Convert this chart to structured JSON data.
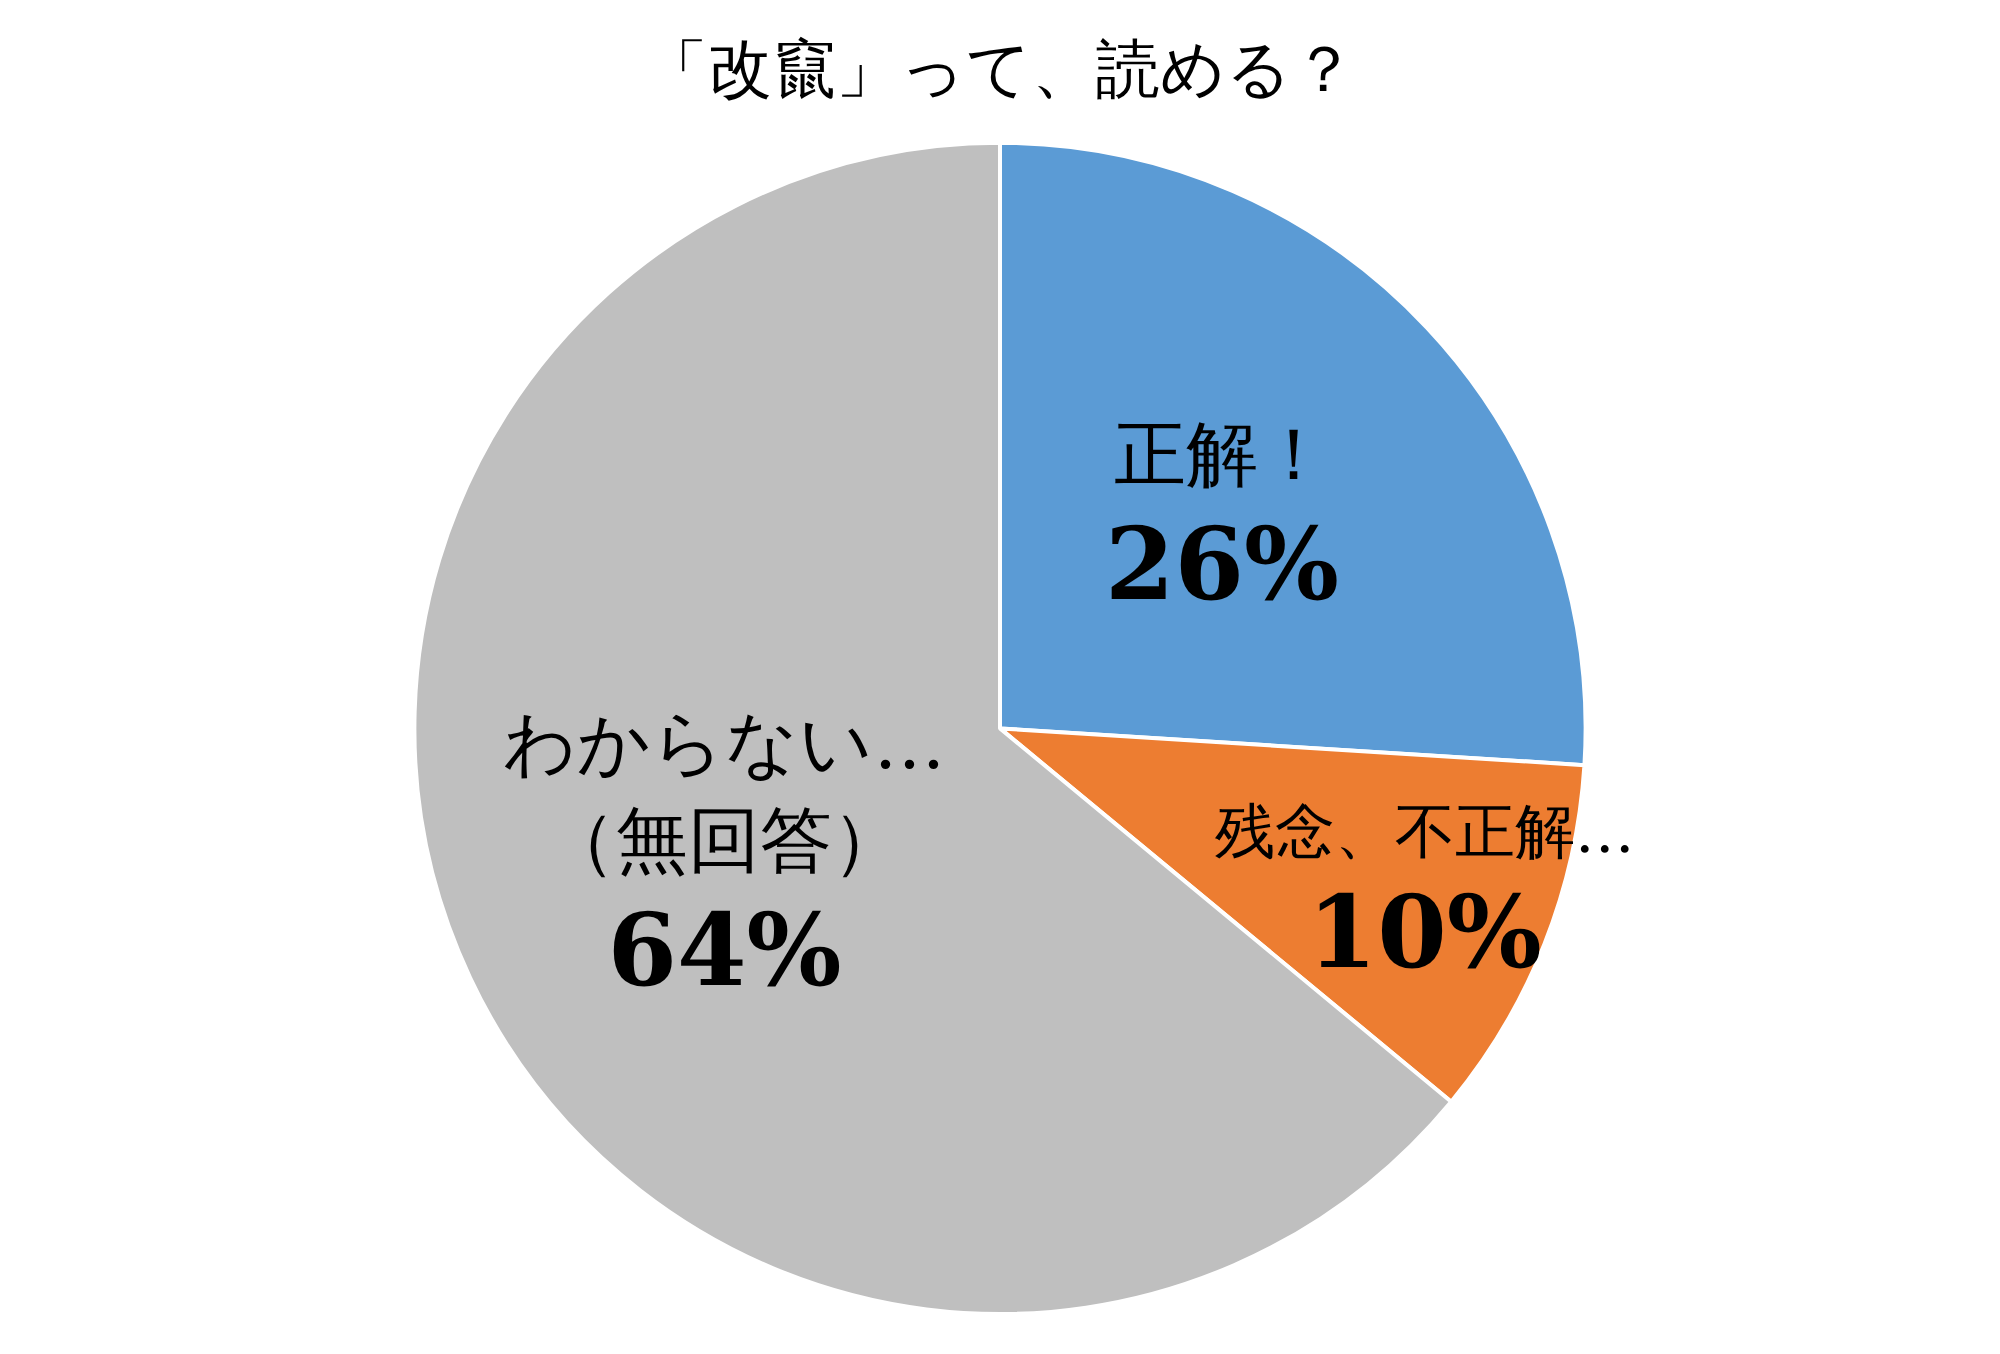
{
  "chart_data": {
    "type": "pie",
    "title": "「改竄」って、読める？",
    "categories": [
      "正解！",
      "残念、不正解…",
      "わからない…（無回答）"
    ],
    "values": [
      26,
      10,
      64
    ],
    "colors": [
      "#5b9bd5",
      "#ed7d31",
      "#bfbfbf"
    ],
    "value_labels": [
      "26%",
      "10%",
      "64%"
    ],
    "legend": false
  }
}
